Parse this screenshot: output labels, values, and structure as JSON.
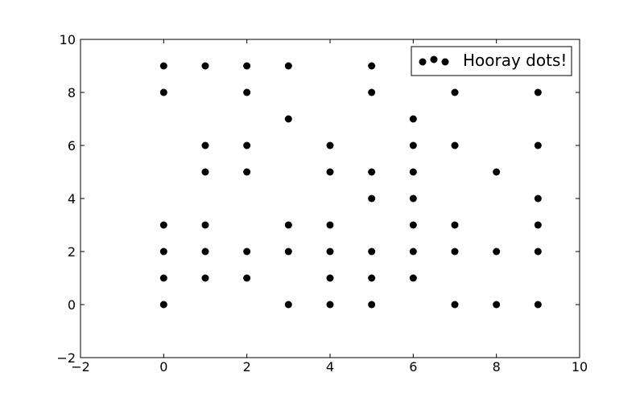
{
  "chart_data": {
    "type": "scatter",
    "title": "",
    "xlabel": "",
    "ylabel": "",
    "xlim": [
      -2,
      10
    ],
    "ylim": [
      -2,
      10
    ],
    "x_ticks": [
      -2,
      0,
      2,
      4,
      6,
      8,
      10
    ],
    "y_ticks": [
      -2,
      0,
      2,
      4,
      6,
      8,
      10
    ],
    "x_tick_labels": [
      "−2",
      "0",
      "2",
      "4",
      "6",
      "8",
      "10"
    ],
    "y_tick_labels": [
      "−2",
      "0",
      "2",
      "4",
      "6",
      "8",
      "10"
    ],
    "grid": false,
    "legend_position": "top-right",
    "series": [
      {
        "name": "Hooray dots!",
        "color": "#000000",
        "marker": "circle",
        "points": [
          [
            0,
            9
          ],
          [
            0,
            8
          ],
          [
            0,
            3
          ],
          [
            0,
            2
          ],
          [
            0,
            1
          ],
          [
            0,
            0
          ],
          [
            1,
            9
          ],
          [
            1,
            6
          ],
          [
            1,
            5
          ],
          [
            1,
            3
          ],
          [
            1,
            2
          ],
          [
            1,
            1
          ],
          [
            2,
            9
          ],
          [
            2,
            8
          ],
          [
            2,
            6
          ],
          [
            2,
            5
          ],
          [
            2,
            2
          ],
          [
            2,
            1
          ],
          [
            3,
            9
          ],
          [
            3,
            7
          ],
          [
            3,
            3
          ],
          [
            3,
            2
          ],
          [
            3,
            0
          ],
          [
            4,
            6
          ],
          [
            4,
            5
          ],
          [
            4,
            3
          ],
          [
            4,
            2
          ],
          [
            4,
            1
          ],
          [
            4,
            0
          ],
          [
            5,
            9
          ],
          [
            5,
            8
          ],
          [
            5,
            5
          ],
          [
            5,
            4
          ],
          [
            5,
            2
          ],
          [
            5,
            1
          ],
          [
            5,
            0
          ],
          [
            6,
            7
          ],
          [
            6,
            6
          ],
          [
            6,
            5
          ],
          [
            6,
            4
          ],
          [
            6,
            3
          ],
          [
            6,
            2
          ],
          [
            6,
            1
          ],
          [
            7,
            8
          ],
          [
            7,
            6
          ],
          [
            7,
            3
          ],
          [
            7,
            2
          ],
          [
            7,
            0
          ],
          [
            8,
            5
          ],
          [
            8,
            2
          ],
          [
            8,
            0
          ],
          [
            9,
            8
          ],
          [
            9,
            6
          ],
          [
            9,
            4
          ],
          [
            9,
            3
          ],
          [
            9,
            2
          ],
          [
            9,
            0
          ]
        ]
      }
    ]
  }
}
